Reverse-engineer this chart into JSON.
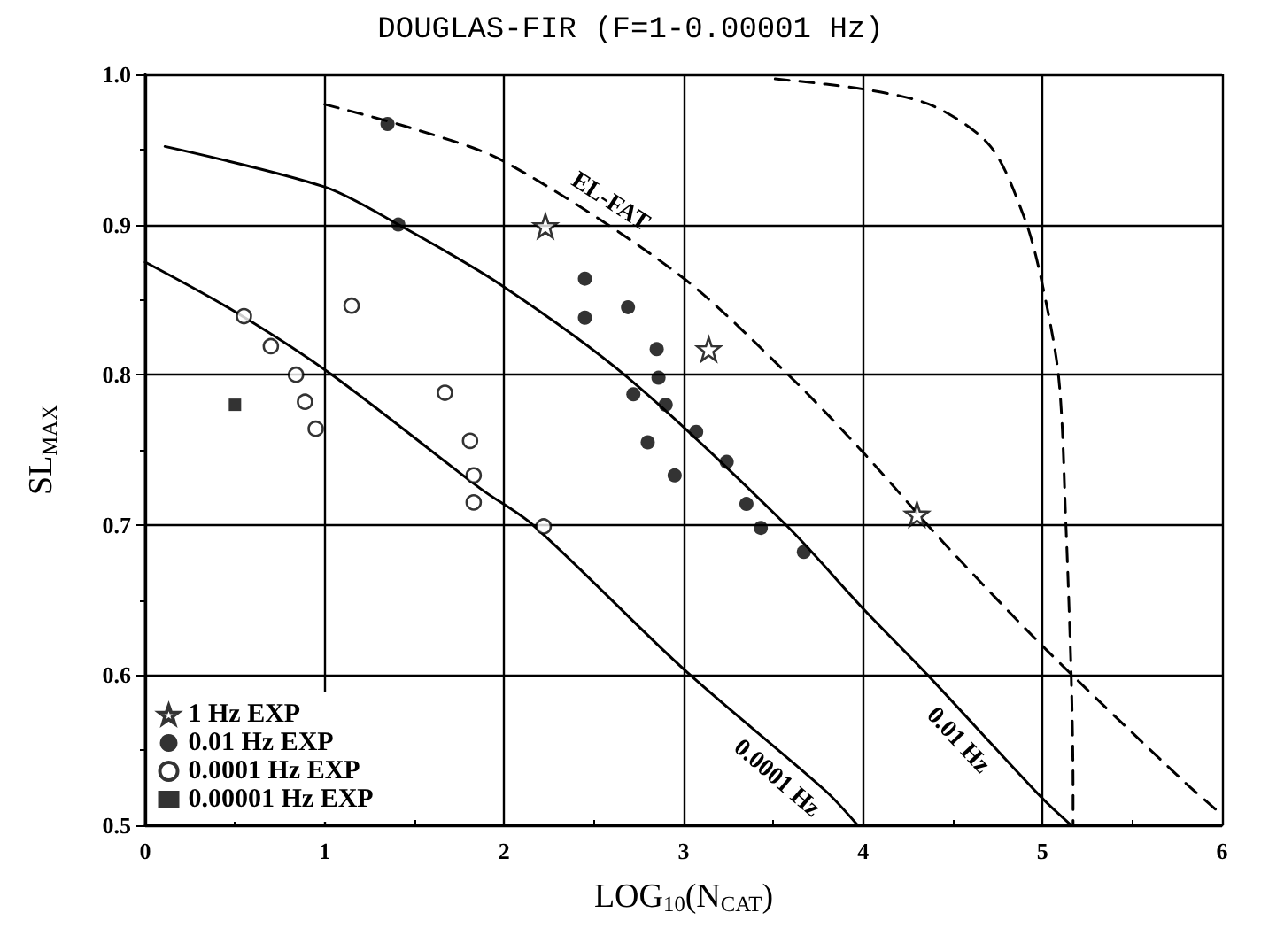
{
  "chart_data": {
    "type": "scatter",
    "title": "DOUGLAS-FIR (F=1-0.00001 Hz)",
    "xlabel": "LOG$_{10}$(N$_{CAT}$)",
    "ylabel": "SL$_{MAX}$",
    "xlim": [
      0,
      6
    ],
    "ylim": [
      0.5,
      1.0
    ],
    "xticks": [
      0,
      1,
      2,
      3,
      4,
      5,
      6
    ],
    "yticks": [
      0.5,
      0.6,
      0.7,
      0.8,
      0.9,
      {
        "value": 1.0,
        "label": "1.0"
      }
    ],
    "grid": true,
    "legend": "bottom left",
    "series": [
      {
        "name": "1 Hz EXP",
        "marker": "star",
        "color": "#000000",
        "x": [
          2.23,
          3.14,
          4.3
        ],
        "values": [
          0.899,
          0.817,
          0.707
        ]
      },
      {
        "name": "0.01 Hz EXP",
        "marker": "circle",
        "color": "#000000",
        "x": [
          1.35,
          1.41,
          2.45,
          2.45,
          2.69,
          2.85,
          2.86,
          2.72,
          2.9,
          2.8,
          2.95,
          3.07,
          3.24,
          3.35,
          3.43,
          3.67
        ],
        "values": [
          0.967,
          0.9,
          0.864,
          0.838,
          0.845,
          0.817,
          0.798,
          0.787,
          0.78,
          0.755,
          0.733,
          0.762,
          0.742,
          0.714,
          0.698,
          0.682
        ]
      },
      {
        "name": "0.0001 Hz EXP",
        "marker": "circle",
        "color": "#000000",
        "x": [
          0.55,
          0.7,
          0.84,
          0.89,
          0.95,
          1.15,
          1.67,
          1.81,
          1.83,
          1.83,
          2.22
        ],
        "values": [
          0.839,
          0.819,
          0.8,
          0.782,
          0.764,
          0.846,
          0.788,
          0.756,
          0.733,
          0.715,
          0.699
        ]
      },
      {
        "name": "0.00001 Hz EXP",
        "marker": "square",
        "color": "#000000",
        "x": [
          0.5
        ],
        "values": [
          0.78
        ]
      },
      {
        "name": "0.01 Hz",
        "type": "line",
        "line_style": "solid",
        "color": "#000000",
        "x": [
          0.11,
          1.0,
          1.41,
          1.98,
          2.69,
          3.57,
          4.01,
          4.36,
          4.99,
          5.16
        ],
        "values": [
          0.952,
          0.925,
          0.9,
          0.86,
          0.798,
          0.7,
          0.643,
          0.6,
          0.519,
          0.5
        ]
      },
      {
        "name": "0.0001 Hz",
        "type": "line",
        "line_style": "solid",
        "color": "#000000",
        "x": [
          0.0,
          0.5,
          1.04,
          1.87,
          2.16,
          3.0,
          3.79,
          3.97
        ],
        "values": [
          0.875,
          0.842,
          0.8,
          0.724,
          0.7,
          0.604,
          0.523,
          0.5
        ]
      },
      {
        "name": "EL-FAT",
        "type": "line",
        "line_style": "dashed",
        "color": "#000000",
        "x": [
          1.0,
          1.49,
          2.0,
          2.97,
          3.6,
          4.01,
          4.45,
          5.02,
          5.78,
          6.0
        ],
        "values": [
          0.98,
          0.964,
          0.942,
          0.867,
          0.798,
          0.747,
          0.688,
          0.617,
          0.53,
          0.507
        ]
      },
      {
        "type": "line",
        "line_style": "dashed",
        "color": "#000000",
        "x": [
          3.51,
          4.01,
          4.39,
          4.71,
          4.9,
          4.99,
          5.09,
          5.13,
          5.16,
          5.17,
          5.17
        ],
        "values": [
          0.997,
          0.99,
          0.979,
          0.952,
          0.904,
          0.865,
          0.798,
          0.7,
          0.598,
          0.523,
          0.5
        ]
      }
    ]
  }
}
